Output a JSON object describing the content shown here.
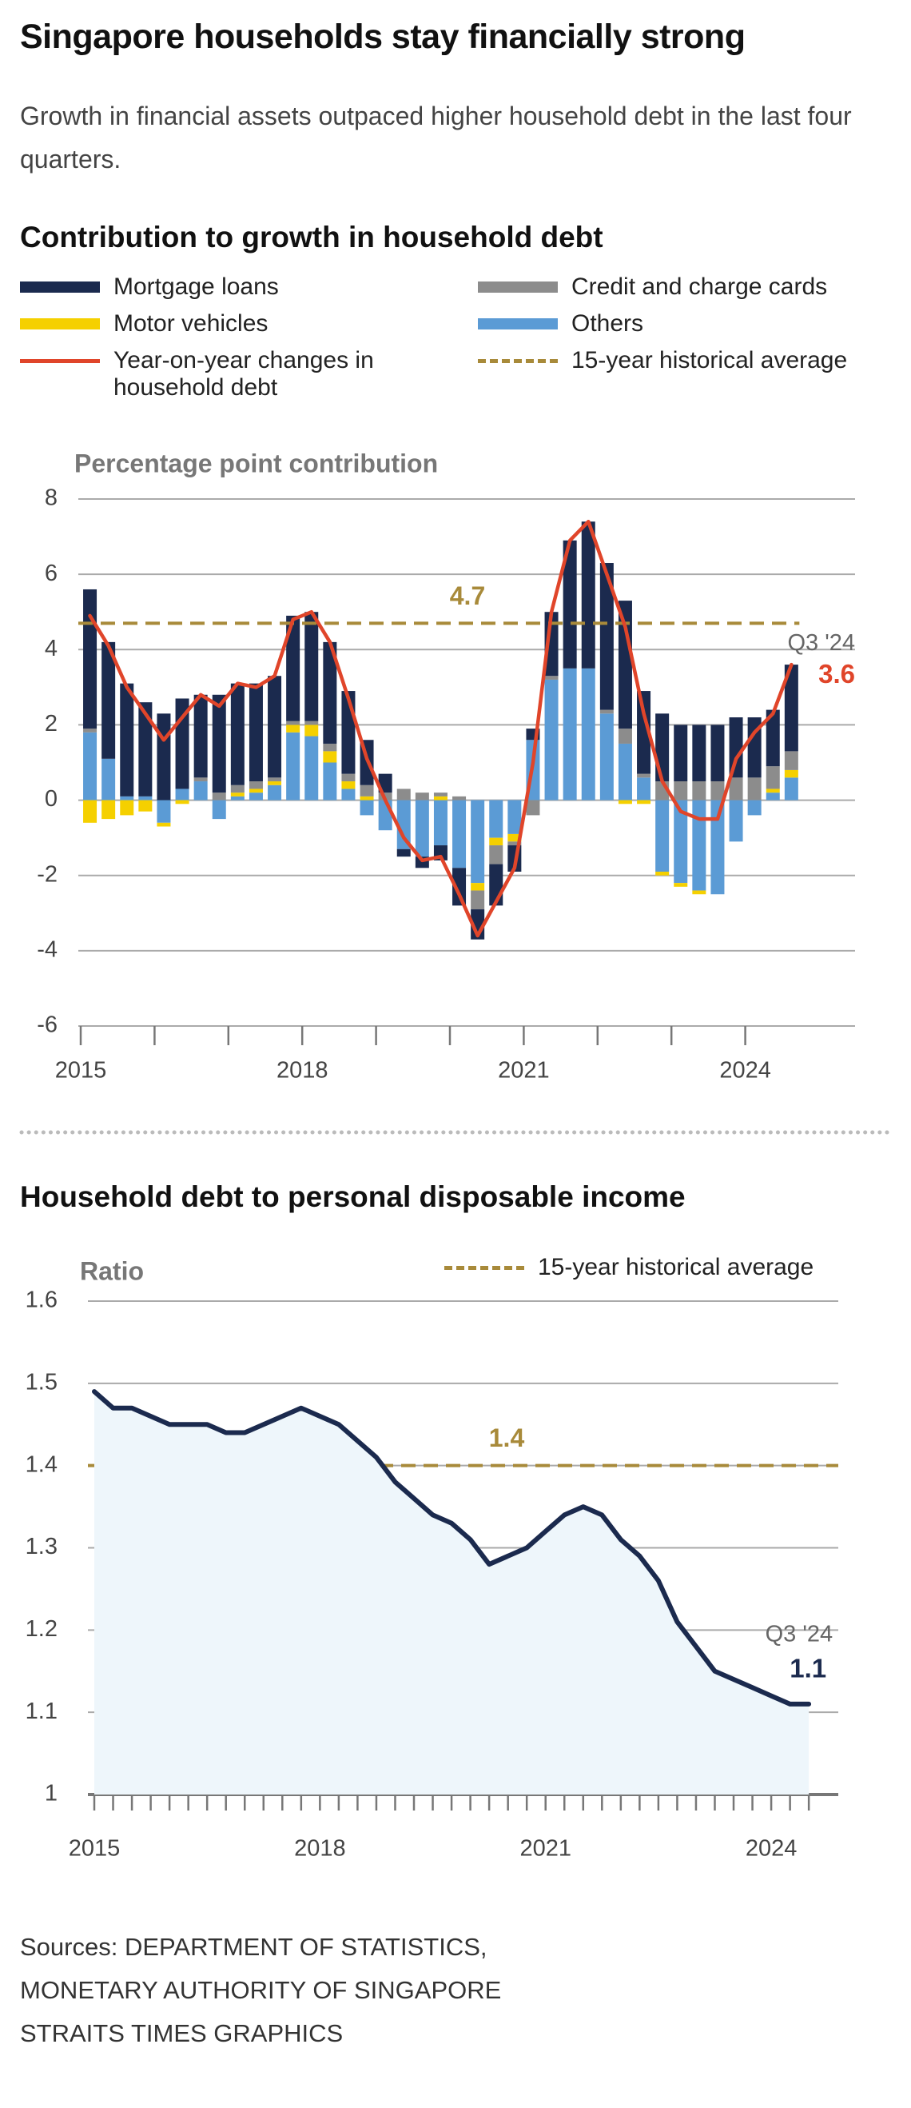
{
  "header": {
    "title": "Singapore households stay financially strong",
    "subtitle": "Growth in financial assets outpaced higher household debt in the last four quarters."
  },
  "chart_data": [
    {
      "type": "bar",
      "stacked": true,
      "title": "Contribution to growth in household debt",
      "y_label": "Percentage point contribution",
      "categories": [
        "2015",
        null,
        null,
        null,
        null,
        null,
        null,
        null,
        null,
        null,
        null,
        null,
        "2018",
        null,
        null,
        null,
        null,
        null,
        null,
        null,
        null,
        null,
        null,
        null,
        "2021",
        null,
        null,
        null,
        null,
        null,
        null,
        null,
        null,
        null,
        null,
        null,
        "2024",
        null,
        null
      ],
      "series": [
        {
          "name": "Mortgage loans",
          "color": "#1b2a4e",
          "values": [
            3.7,
            3.1,
            3.0,
            2.5,
            2.3,
            2.4,
            2.2,
            2.6,
            2.7,
            2.6,
            2.7,
            2.8,
            2.9,
            2.7,
            2.2,
            1.2,
            0.5,
            -0.2,
            -0.3,
            -0.4,
            -1.0,
            -0.8,
            -1.1,
            -0.7,
            0.3,
            1.7,
            3.4,
            3.9,
            3.9,
            3.4,
            2.2,
            1.8,
            1.5,
            1.5,
            1.5,
            1.6,
            1.6,
            1.5,
            2.3
          ]
        },
        {
          "name": "Credit and charge cards",
          "color": "#8c8c8c",
          "values": [
            0.1,
            0,
            0,
            0,
            0,
            0,
            0.1,
            0.2,
            0.2,
            0.2,
            0.1,
            0.1,
            0.1,
            0.2,
            0.2,
            0.3,
            0.2,
            0.3,
            0.2,
            0.1,
            0.1,
            -0.5,
            -0.5,
            -0.1,
            -0.4,
            0.1,
            0,
            0,
            0.1,
            0.4,
            0.1,
            0.5,
            0.5,
            0.5,
            0.5,
            0.6,
            0.6,
            0.6,
            0.5
          ]
        },
        {
          "name": "Motor vehicles",
          "color": "#f5d000",
          "values": [
            -0.6,
            -0.5,
            -0.4,
            -0.3,
            -0.1,
            -0.1,
            0,
            0,
            0.1,
            0.1,
            0.1,
            0.2,
            0.3,
            0.3,
            0.2,
            0.1,
            0,
            0,
            0,
            0.1,
            0,
            -0.2,
            -0.2,
            -0.2,
            0,
            0,
            0,
            0,
            0,
            -0.1,
            -0.1,
            -0.1,
            -0.1,
            -0.1,
            0,
            0,
            0,
            0.1,
            0.2
          ]
        },
        {
          "name": "Others",
          "color": "#5b9bd5",
          "values": [
            1.8,
            1.1,
            0.1,
            0.1,
            -0.6,
            0.3,
            0.5,
            -0.5,
            0.1,
            0.2,
            0.4,
            1.8,
            1.7,
            1.0,
            0.3,
            -0.4,
            -0.8,
            -1.3,
            -1.5,
            -1.2,
            -1.8,
            -2.2,
            -1.0,
            -0.9,
            1.6,
            3.2,
            3.5,
            3.5,
            2.3,
            1.5,
            0.6,
            -1.9,
            -2.2,
            -2.4,
            -2.5,
            -1.1,
            -0.4,
            0.2,
            0.6
          ]
        },
        {
          "name": "Year-on-year changes in household debt",
          "type": "line",
          "color": "#e0452a",
          "values": [
            4.9,
            4.1,
            3.0,
            2.3,
            1.6,
            2.2,
            2.8,
            2.5,
            3.1,
            3.0,
            3.3,
            4.8,
            5.0,
            4.2,
            2.7,
            1.1,
            0.0,
            -1.0,
            -1.6,
            -1.5,
            -2.5,
            -3.6,
            -2.7,
            -1.8,
            1.0,
            5.0,
            6.9,
            7.4,
            6.0,
            4.6,
            2.3,
            0.5,
            -0.3,
            -0.5,
            -0.5,
            1.1,
            1.8,
            2.3,
            3.6
          ]
        }
      ],
      "reference_line": {
        "name": "15-year historical average",
        "value": 4.7,
        "color": "#a88a3a"
      },
      "annotation": "Q3 '24",
      "ylim": [
        -6,
        8
      ],
      "yticks": [
        -6,
        -4,
        -2,
        0,
        2,
        4,
        6,
        8
      ],
      "grid": true
    },
    {
      "type": "line",
      "title": "Household debt to personal disposable income",
      "y_label": "Ratio",
      "categories": [
        "2015",
        null,
        null,
        null,
        null,
        null,
        null,
        null,
        null,
        null,
        null,
        null,
        "2018",
        null,
        null,
        null,
        null,
        null,
        null,
        null,
        null,
        null,
        null,
        null,
        "2021",
        null,
        null,
        null,
        null,
        null,
        null,
        null,
        null,
        null,
        null,
        null,
        "2024",
        null,
        null
      ],
      "values": [
        1.49,
        1.47,
        1.47,
        1.46,
        1.45,
        1.45,
        1.45,
        1.44,
        1.44,
        1.45,
        1.46,
        1.47,
        1.46,
        1.45,
        1.43,
        1.41,
        1.38,
        1.36,
        1.34,
        1.33,
        1.31,
        1.28,
        1.29,
        1.3,
        1.32,
        1.34,
        1.35,
        1.34,
        1.31,
        1.29,
        1.26,
        1.21,
        1.18,
        1.15,
        1.14,
        1.13,
        1.12,
        1.11,
        1.11
      ],
      "value_labels": [
        null,
        null,
        null,
        null,
        null,
        null,
        null,
        null,
        null,
        null,
        null,
        null,
        null,
        null,
        null,
        null,
        null,
        null,
        null,
        null,
        null,
        null,
        null,
        null,
        null,
        null,
        null,
        null,
        null,
        null,
        null,
        null,
        null,
        null,
        null,
        null,
        null,
        null,
        "1.1"
      ],
      "color": "#1b2a4e",
      "fill_color": "#eef6fb",
      "reference_line": {
        "name": "15-year historical average",
        "value": 1.4,
        "color": "#a88a3a"
      },
      "annotation": "Q3 '24",
      "ylim": [
        1,
        1.6
      ],
      "yticks": [
        1,
        1.1,
        1.2,
        1.3,
        1.4,
        1.5,
        1.6
      ],
      "grid": true
    }
  ],
  "footer": {
    "sources": [
      "Sources: DEPARTMENT OF STATISTICS,",
      "MONETARY AUTHORITY OF SINGAPORE",
      "STRAITS TIMES GRAPHICS"
    ]
  }
}
